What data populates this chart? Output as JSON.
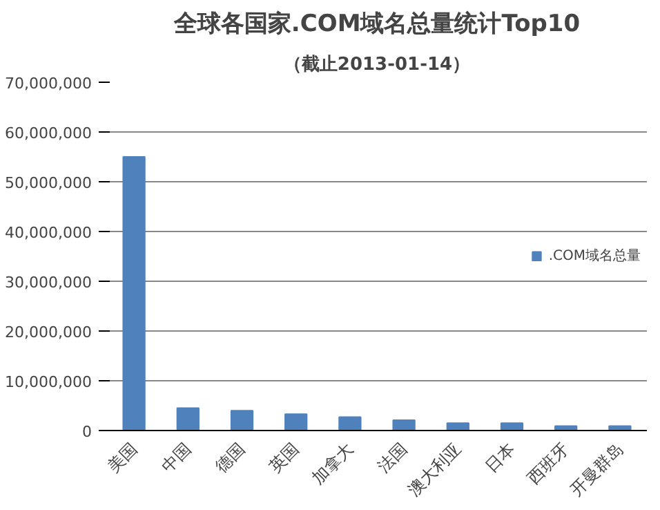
{
  "chart_data": {
    "type": "bar",
    "title": "全球各国家.COM域名总量统计Top10",
    "subtitle": "（截止2013-01-14）",
    "categories": [
      "美国",
      "中国",
      "德国",
      "英国",
      "加拿大",
      "法国",
      "澳大利亚",
      "日本",
      "西班牙",
      "开曼群岛"
    ],
    "series": [
      {
        "name": ".COM域名总量",
        "color": "#4f81bd",
        "values": [
          55000000,
          4500000,
          4000000,
          3300000,
          2700000,
          2100000,
          1500000,
          1500000,
          900000,
          900000
        ]
      }
    ],
    "ylim": [
      0,
      70000000
    ],
    "yticks": [
      {
        "value": 0,
        "label": "0"
      },
      {
        "value": 10000000,
        "label": "10,000,000"
      },
      {
        "value": 20000000,
        "label": "20,000,000"
      },
      {
        "value": 30000000,
        "label": "30,000,000"
      },
      {
        "value": 40000000,
        "label": "40,000,000"
      },
      {
        "value": 50000000,
        "label": "50,000,000"
      },
      {
        "value": 60000000,
        "label": "60,000,000"
      },
      {
        "value": 70000000,
        "label": "70,000,000"
      }
    ],
    "grid": "y",
    "legend": "right"
  }
}
